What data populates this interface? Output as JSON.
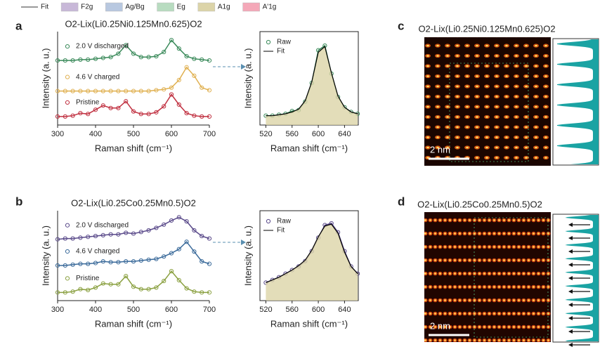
{
  "chart_data": [
    {
      "type": "line",
      "title": "O2-Lix(Li0.25Ni0.125Mn0.625)O2",
      "xlabel": "Raman shift (cm⁻¹)",
      "ylabel": "Intensity (a. u.)",
      "x": [
        300,
        320,
        340,
        360,
        380,
        400,
        420,
        440,
        460,
        480,
        500,
        520,
        540,
        560,
        580,
        600,
        620,
        640,
        660,
        680,
        700
      ],
      "xlim": [
        300,
        700
      ],
      "ylim": [
        0,
        11
      ],
      "xticks": [
        300,
        400,
        500,
        600,
        700
      ],
      "series": [
        {
          "name": "2.0 V discharged",
          "color": "#3a8a5a",
          "marker": "circle",
          "values": [
            7.6,
            7.6,
            7.6,
            7.7,
            7.7,
            7.8,
            7.9,
            8.0,
            8.4,
            9.4,
            8.4,
            8.0,
            8.0,
            8.1,
            8.6,
            10.0,
            9.0,
            8.1,
            7.8,
            7.7,
            7.6
          ]
        },
        {
          "name": "4.6 V charged",
          "color": "#e0b050",
          "marker": "circle",
          "values": [
            4.0,
            4.0,
            4.0,
            4.0,
            4.0,
            4.0,
            4.0,
            4.0,
            4.0,
            4.0,
            4.0,
            4.0,
            4.0,
            4.1,
            4.2,
            4.4,
            5.3,
            6.8,
            5.8,
            4.4,
            4.1
          ]
        },
        {
          "name": "Pristine",
          "color": "#c03040",
          "marker": "circle",
          "values": [
            1.0,
            1.0,
            1.1,
            1.4,
            1.3,
            1.8,
            2.3,
            2.0,
            2.0,
            2.8,
            1.6,
            1.3,
            1.3,
            1.5,
            2.2,
            3.6,
            2.4,
            1.4,
            1.1,
            1.0,
            1.0
          ]
        }
      ]
    },
    {
      "type": "line",
      "xlabel": "Raman shift (cm⁻¹)",
      "ylabel": "Intensity (a. u.)",
      "x": [
        520,
        530,
        540,
        550,
        560,
        570,
        580,
        590,
        600,
        610,
        620,
        630,
        640,
        650,
        660
      ],
      "xlim": [
        511,
        661
      ],
      "ylim": [
        0,
        10
      ],
      "xticks": [
        520,
        560,
        600,
        640
      ],
      "series": [
        {
          "name": "Raw",
          "color": "#3a8a5a",
          "marker": "circle",
          "values": [
            1.0,
            1.0,
            1.1,
            1.2,
            1.5,
            1.6,
            2.5,
            4.5,
            8.0,
            8.5,
            5.5,
            3.0,
            1.9,
            1.4,
            1.2
          ]
        },
        {
          "name": "Fit",
          "color": "#000000",
          "fill": "#dcd4a8",
          "values": [
            1.0,
            1.0,
            1.1,
            1.2,
            1.4,
            1.7,
            2.6,
            4.6,
            7.8,
            8.4,
            5.6,
            3.1,
            1.9,
            1.4,
            1.2
          ]
        }
      ]
    },
    {
      "type": "line",
      "title": "O2-Lix(Li0.25Co0.25Mn0.5)O2",
      "xlabel": "Raman shift (cm⁻¹)",
      "ylabel": "Intensity (a. u.)",
      "x": [
        300,
        320,
        340,
        360,
        380,
        400,
        420,
        440,
        460,
        480,
        500,
        520,
        540,
        560,
        580,
        600,
        620,
        640,
        660,
        680,
        700
      ],
      "xlim": [
        300,
        700
      ],
      "ylim": [
        0,
        11
      ],
      "xticks": [
        300,
        400,
        500,
        600,
        700
      ],
      "series": [
        {
          "name": "2.0 V discharged",
          "color": "#5a4a8a",
          "marker": "circle",
          "values": [
            7.5,
            7.6,
            7.6,
            7.7,
            7.8,
            7.9,
            8.0,
            8.1,
            8.1,
            8.3,
            8.2,
            8.4,
            8.6,
            8.9,
            9.3,
            9.8,
            10.2,
            9.7,
            8.6,
            7.9,
            7.6
          ]
        },
        {
          "name": "4.6 V charged",
          "color": "#3a6a9a",
          "marker": "circle",
          "values": [
            4.3,
            4.3,
            4.4,
            4.5,
            4.5,
            4.6,
            4.8,
            4.7,
            4.7,
            4.8,
            4.8,
            4.9,
            5.0,
            5.1,
            5.4,
            5.8,
            6.3,
            7.2,
            6.0,
            4.8,
            4.5
          ]
        },
        {
          "name": "Pristine",
          "color": "#8aa040",
          "marker": "circle",
          "values": [
            1.0,
            1.0,
            1.1,
            1.4,
            1.3,
            1.6,
            2.1,
            2.0,
            2.0,
            3.0,
            1.7,
            1.4,
            1.4,
            1.6,
            2.4,
            3.6,
            2.5,
            1.5,
            1.1,
            1.0,
            1.0
          ]
        }
      ]
    },
    {
      "type": "line",
      "xlabel": "Raman shift (cm⁻¹)",
      "ylabel": "Intensity (a. u.)",
      "x": [
        520,
        530,
        540,
        550,
        560,
        570,
        580,
        590,
        600,
        610,
        620,
        630,
        640,
        650,
        660
      ],
      "xlim": [
        511,
        661
      ],
      "ylim": [
        0,
        10
      ],
      "xticks": [
        520,
        560,
        600,
        640
      ],
      "series": [
        {
          "name": "Raw",
          "color": "#5a4a8a",
          "marker": "circle",
          "values": [
            2.0,
            2.3,
            2.6,
            3.0,
            3.4,
            3.8,
            4.4,
            5.5,
            7.0,
            8.4,
            8.6,
            7.6,
            5.5,
            3.8,
            3.0
          ]
        },
        {
          "name": "Fit",
          "color": "#000000",
          "fill": "#dcd4a8",
          "values": [
            2.0,
            2.3,
            2.6,
            3.0,
            3.4,
            3.9,
            4.5,
            5.6,
            7.1,
            8.3,
            8.5,
            7.5,
            5.4,
            3.8,
            3.0
          ]
        }
      ]
    }
  ],
  "figure": {
    "panels": [
      "a",
      "b",
      "c",
      "d"
    ],
    "legend": [
      {
        "label": "Fit",
        "color": "#333333"
      },
      {
        "label": "F2g",
        "color": "#c8b8d8"
      },
      {
        "label": "Ag/Bg",
        "color": "#b8c8e0"
      },
      {
        "label": "Eg",
        "color": "#b8dcc0"
      },
      {
        "label": "A1g",
        "color": "#dcd4a8"
      },
      {
        "label": "A'1g",
        "color": "#f4a8b8"
      }
    ],
    "images": [
      {
        "title": "O2-Lix(Li0.25Ni0.125Mn0.625)O2",
        "scale": "2 nm"
      },
      {
        "title": "O2-Lix(Li0.25Co0.25Mn0.5)O2",
        "scale": "2 nm"
      }
    ]
  }
}
